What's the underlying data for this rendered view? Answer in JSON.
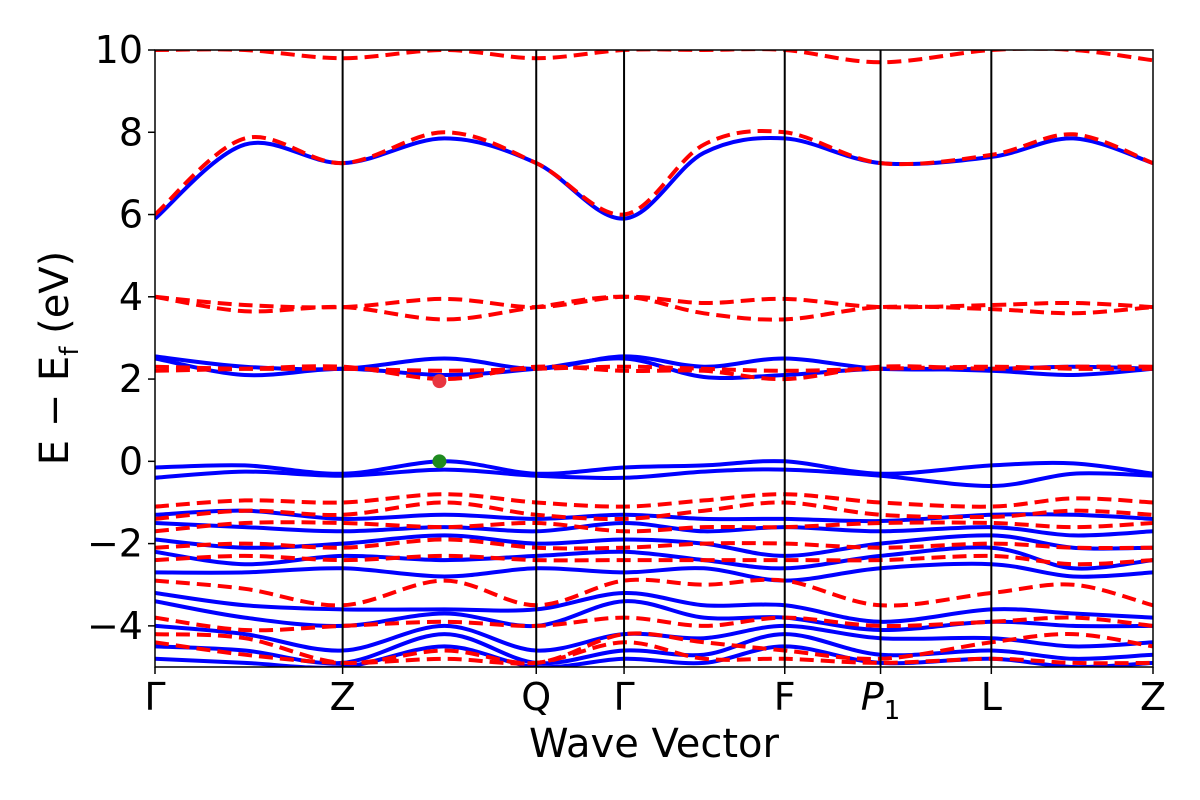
{
  "chart_data": {
    "type": "line",
    "title": "",
    "xlabel": "Wave Vector",
    "ylabel_main": "E − E",
    "ylabel_sub": "f",
    "ylabel_unit": " (eV)",
    "ylim": [
      -5,
      10
    ],
    "yticks": [
      -4,
      -2,
      0,
      2,
      4,
      6,
      8,
      10
    ],
    "ytick_labels": [
      "−4",
      "−2",
      "0",
      "2",
      "4",
      "6",
      "8",
      "10"
    ],
    "xlim": [
      0,
      1
    ],
    "kpoints": [
      {
        "label": "Γ",
        "sub": "",
        "italic": false,
        "x": 0.0
      },
      {
        "label": "Z",
        "sub": "",
        "italic": false,
        "x": 0.188
      },
      {
        "label": "Q",
        "sub": "",
        "italic": false,
        "x": 0.382
      },
      {
        "label": "Γ",
        "sub": "",
        "italic": false,
        "x": 0.47
      },
      {
        "label": "F",
        "sub": "",
        "italic": false,
        "x": 0.631
      },
      {
        "label": "P",
        "sub": "1",
        "italic": true,
        "x": 0.727
      },
      {
        "label": "L",
        "sub": "",
        "italic": false,
        "x": 0.838
      },
      {
        "label": "Z",
        "sub": "",
        "italic": false,
        "x": 1.0
      }
    ],
    "series": [
      {
        "style": "solid",
        "color": "#0000ff",
        "x": [
          0,
          0.09,
          0.188,
          0.29,
          0.382,
          0.47,
          0.55,
          0.631,
          0.727,
          0.838,
          0.92,
          1.0
        ],
        "bands": [
          [
            5.9,
            7.7,
            7.25,
            7.85,
            7.25,
            5.9,
            7.5,
            7.85,
            7.25,
            7.4,
            7.85,
            7.25
          ],
          [
            2.55,
            2.3,
            2.25,
            2.5,
            2.25,
            2.55,
            2.3,
            2.5,
            2.25,
            2.25,
            2.3,
            2.25
          ],
          [
            2.5,
            2.1,
            2.25,
            2.1,
            2.25,
            2.5,
            2.05,
            2.1,
            2.25,
            2.2,
            2.1,
            2.25
          ],
          [
            -0.15,
            -0.1,
            -0.3,
            0.0,
            -0.3,
            -0.15,
            -0.1,
            0.0,
            -0.3,
            -0.1,
            -0.05,
            -0.3
          ],
          [
            -0.4,
            -0.25,
            -0.35,
            -0.2,
            -0.35,
            -0.4,
            -0.25,
            -0.2,
            -0.35,
            -0.6,
            -0.3,
            -0.35
          ],
          [
            -1.3,
            -1.2,
            -1.4,
            -1.3,
            -1.4,
            -1.3,
            -1.4,
            -1.4,
            -1.45,
            -1.3,
            -1.3,
            -1.4
          ],
          [
            -1.5,
            -1.6,
            -1.7,
            -1.6,
            -1.7,
            -1.5,
            -1.7,
            -1.6,
            -1.7,
            -1.6,
            -1.8,
            -1.7
          ],
          [
            -1.9,
            -2.1,
            -2.0,
            -1.8,
            -2.0,
            -1.9,
            -2.0,
            -2.3,
            -2.0,
            -1.8,
            -2.1,
            -2.1
          ],
          [
            -2.2,
            -2.5,
            -2.3,
            -2.4,
            -2.3,
            -2.2,
            -2.4,
            -2.6,
            -2.3,
            -2.1,
            -2.6,
            -2.4
          ],
          [
            -2.7,
            -2.7,
            -2.6,
            -2.8,
            -2.6,
            -2.7,
            -2.6,
            -2.9,
            -2.6,
            -2.5,
            -2.8,
            -2.7
          ],
          [
            -3.2,
            -3.5,
            -3.6,
            -3.6,
            -3.6,
            -3.2,
            -3.5,
            -3.5,
            -3.9,
            -3.6,
            -3.7,
            -3.8
          ],
          [
            -3.4,
            -3.8,
            -4.0,
            -3.7,
            -4.0,
            -3.4,
            -3.8,
            -3.8,
            -4.1,
            -3.9,
            -4.0,
            -4.0
          ],
          [
            -4.0,
            -4.2,
            -4.6,
            -4.0,
            -4.6,
            -4.2,
            -4.3,
            -4.0,
            -4.3,
            -4.3,
            -4.5,
            -4.4
          ],
          [
            -4.5,
            -4.6,
            -4.9,
            -4.2,
            -4.9,
            -4.6,
            -4.7,
            -4.2,
            -4.7,
            -4.6,
            -4.8,
            -4.7
          ],
          [
            -4.8,
            -4.9,
            -5.0,
            -4.5,
            -5.0,
            -4.8,
            -4.9,
            -4.5,
            -4.9,
            -4.8,
            -5.0,
            -4.9
          ]
        ]
      },
      {
        "style": "dashed",
        "color": "#ff0000",
        "x": [
          0,
          0.09,
          0.188,
          0.29,
          0.382,
          0.47,
          0.55,
          0.631,
          0.727,
          0.838,
          0.92,
          1.0
        ],
        "bands": [
          [
            6.0,
            7.85,
            7.25,
            8.0,
            7.25,
            6.0,
            7.7,
            8.0,
            7.25,
            7.45,
            7.95,
            7.25
          ],
          [
            10.0,
            10.0,
            9.8,
            10.0,
            9.8,
            10.0,
            10.0,
            10.0,
            9.7,
            10.0,
            10.0,
            9.75
          ],
          [
            4.0,
            3.8,
            3.75,
            3.95,
            3.75,
            4.0,
            3.85,
            3.95,
            3.75,
            3.8,
            3.85,
            3.75
          ],
          [
            4.0,
            3.65,
            3.75,
            3.45,
            3.75,
            4.0,
            3.6,
            3.45,
            3.75,
            3.7,
            3.6,
            3.75
          ],
          [
            2.3,
            2.25,
            2.25,
            2.2,
            2.25,
            2.3,
            2.25,
            2.2,
            2.25,
            2.3,
            2.25,
            2.25
          ],
          [
            2.2,
            2.25,
            2.3,
            2.0,
            2.3,
            2.2,
            2.2,
            2.0,
            2.3,
            2.25,
            2.3,
            2.3
          ],
          [
            -1.1,
            -0.95,
            -1.0,
            -0.8,
            -1.0,
            -1.1,
            -0.95,
            -0.8,
            -1.0,
            -1.1,
            -0.9,
            -1.0
          ],
          [
            -1.4,
            -1.2,
            -1.3,
            -1.0,
            -1.3,
            -1.4,
            -1.2,
            -1.0,
            -1.3,
            -1.35,
            -1.2,
            -1.3
          ],
          [
            -1.7,
            -1.5,
            -1.5,
            -1.6,
            -1.5,
            -1.7,
            -1.6,
            -1.6,
            -1.5,
            -1.5,
            -1.6,
            -1.5
          ],
          [
            -2.1,
            -2.0,
            -2.1,
            -1.9,
            -2.1,
            -2.1,
            -2.0,
            -2.0,
            -2.1,
            -2.0,
            -2.1,
            -2.1
          ],
          [
            -2.4,
            -2.3,
            -2.4,
            -2.3,
            -2.4,
            -2.4,
            -2.4,
            -2.4,
            -2.4,
            -2.3,
            -2.5,
            -2.4
          ],
          [
            -2.9,
            -3.1,
            -3.5,
            -2.9,
            -3.5,
            -2.9,
            -3.0,
            -2.9,
            -3.5,
            -3.2,
            -3.0,
            -3.5
          ],
          [
            -3.8,
            -4.1,
            -4.0,
            -3.9,
            -4.0,
            -3.8,
            -4.0,
            -3.8,
            -4.0,
            -3.9,
            -3.8,
            -4.0
          ],
          [
            -4.2,
            -4.3,
            -4.9,
            -4.6,
            -4.9,
            -4.2,
            -4.4,
            -4.6,
            -4.8,
            -4.4,
            -4.2,
            -4.5
          ],
          [
            -4.4,
            -4.7,
            -4.9,
            -4.8,
            -4.9,
            -4.4,
            -4.8,
            -4.8,
            -4.9,
            -4.8,
            -4.9,
            -4.9
          ]
        ]
      }
    ],
    "markers": [
      {
        "name": "cbm-marker",
        "x": 0.285,
        "y": 1.95,
        "color": "#e8353f"
      },
      {
        "name": "vbm-marker",
        "x": 0.285,
        "y": 0.0,
        "color": "#1f8a1f"
      }
    ]
  }
}
